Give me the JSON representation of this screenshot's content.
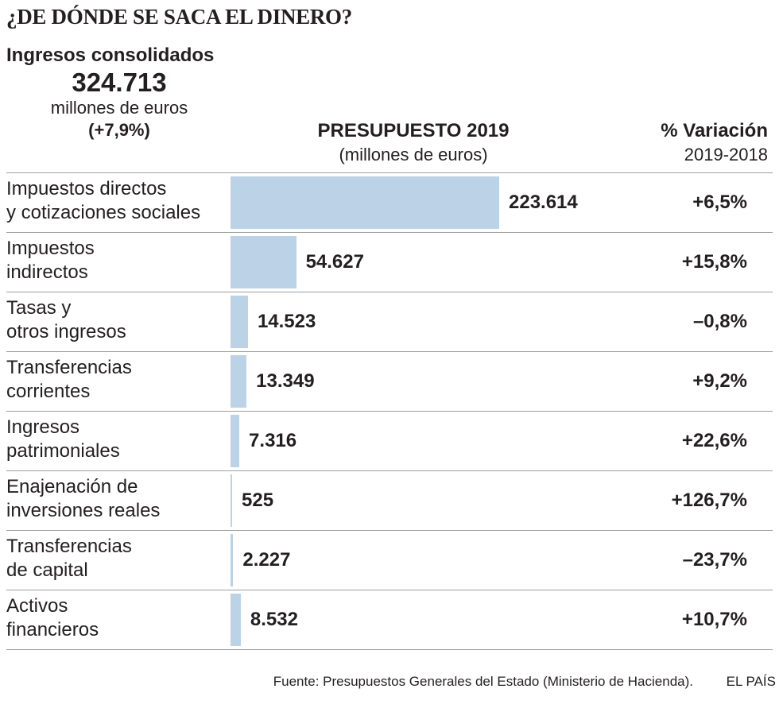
{
  "headline": "¿DE DÓNDE SE SACA EL DINERO?",
  "summary": {
    "title": "Ingresos consolidados",
    "total": "324.713",
    "unit": "millones de euros",
    "change": "(+7,9%)"
  },
  "columns": {
    "budget_title": "PRESUPUESTO 2019",
    "budget_unit": "(millones de euros)",
    "variation_title": "% Variación",
    "variation_period": "2019-2018"
  },
  "chart_data": {
    "type": "bar",
    "orientation": "horizontal",
    "title": "PRESUPUESTO 2019",
    "xlabel": "millones de euros",
    "ylabel": "",
    "categories": [
      "Impuestos directos\ny cotizaciones sociales",
      "Impuestos\nindirectos",
      "Tasas y\notros ingresos",
      "Transferencias\ncorrientes",
      "Ingresos\npatrimoniales",
      "Enajenación de\ninversiones reales",
      "Transferencias\nde capital",
      "Activos\nfinancieros"
    ],
    "values": [
      223614,
      54627,
      14523,
      13349,
      7316,
      525,
      2227,
      8532
    ],
    "value_labels": [
      "223.614",
      "54.627",
      "14.523",
      "13.349",
      "7.316",
      "525",
      "2.227",
      "8.532"
    ],
    "variation_labels": [
      "+6,5%",
      "+15,8%",
      "–0,8%",
      "+9,2%",
      "+22,6%",
      "+126,7%",
      "–23,7%",
      "+10,7%"
    ],
    "variation_values": [
      6.5,
      15.8,
      -0.8,
      9.2,
      22.6,
      126.7,
      -23.7,
      10.7
    ],
    "xlim": [
      0,
      223614
    ],
    "bar_color": "#bcd2e6"
  },
  "footer": {
    "source": "Fuente: Presupuestos Generales del Estado (Ministerio de Hacienda).",
    "brand": "EL PAÍS"
  }
}
